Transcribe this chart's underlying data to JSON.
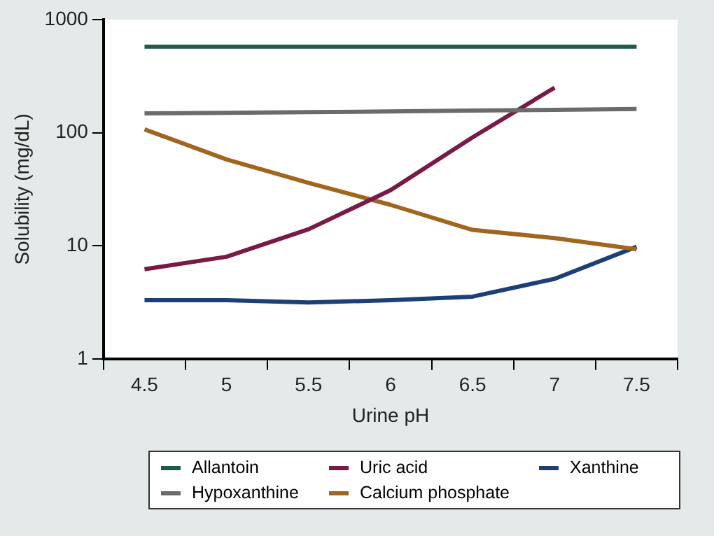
{
  "chart_data": {
    "type": "line",
    "xlabel": "Urine pH",
    "ylabel": "Solubility (mg/dL)",
    "categories": [
      "4.5",
      "5",
      "5.5",
      "6",
      "6.5",
      "7",
      "7.5"
    ],
    "log": "y",
    "ylim": [
      1,
      1000
    ],
    "yticks": [
      1,
      10,
      100,
      1000
    ],
    "grid": false,
    "legend": "bottom",
    "marker": "none",
    "line_style": "solid",
    "series": [
      {
        "name": "Allantoin",
        "color": "#1e5c4a",
        "values": [
          575,
          575,
          575,
          575,
          575,
          575,
          575
        ]
      },
      {
        "name": "Hypoxanthine",
        "color": "#6b6b6b",
        "values": [
          148,
          150,
          152,
          154,
          157,
          159,
          162
        ]
      },
      {
        "name": "Uric acid",
        "color": "#7a1846",
        "values": [
          6.2,
          8,
          14,
          31,
          91,
          250,
          null
        ]
      },
      {
        "name": "Calcium phosphate",
        "color": "#a0661e",
        "values": [
          107,
          58,
          36,
          23,
          13.8,
          11.7,
          9.3
        ]
      },
      {
        "name": "Xanthine",
        "color": "#1c3f75",
        "values": [
          3.3,
          3.3,
          3.15,
          3.3,
          3.55,
          5.1,
          9.8
        ]
      }
    ]
  }
}
